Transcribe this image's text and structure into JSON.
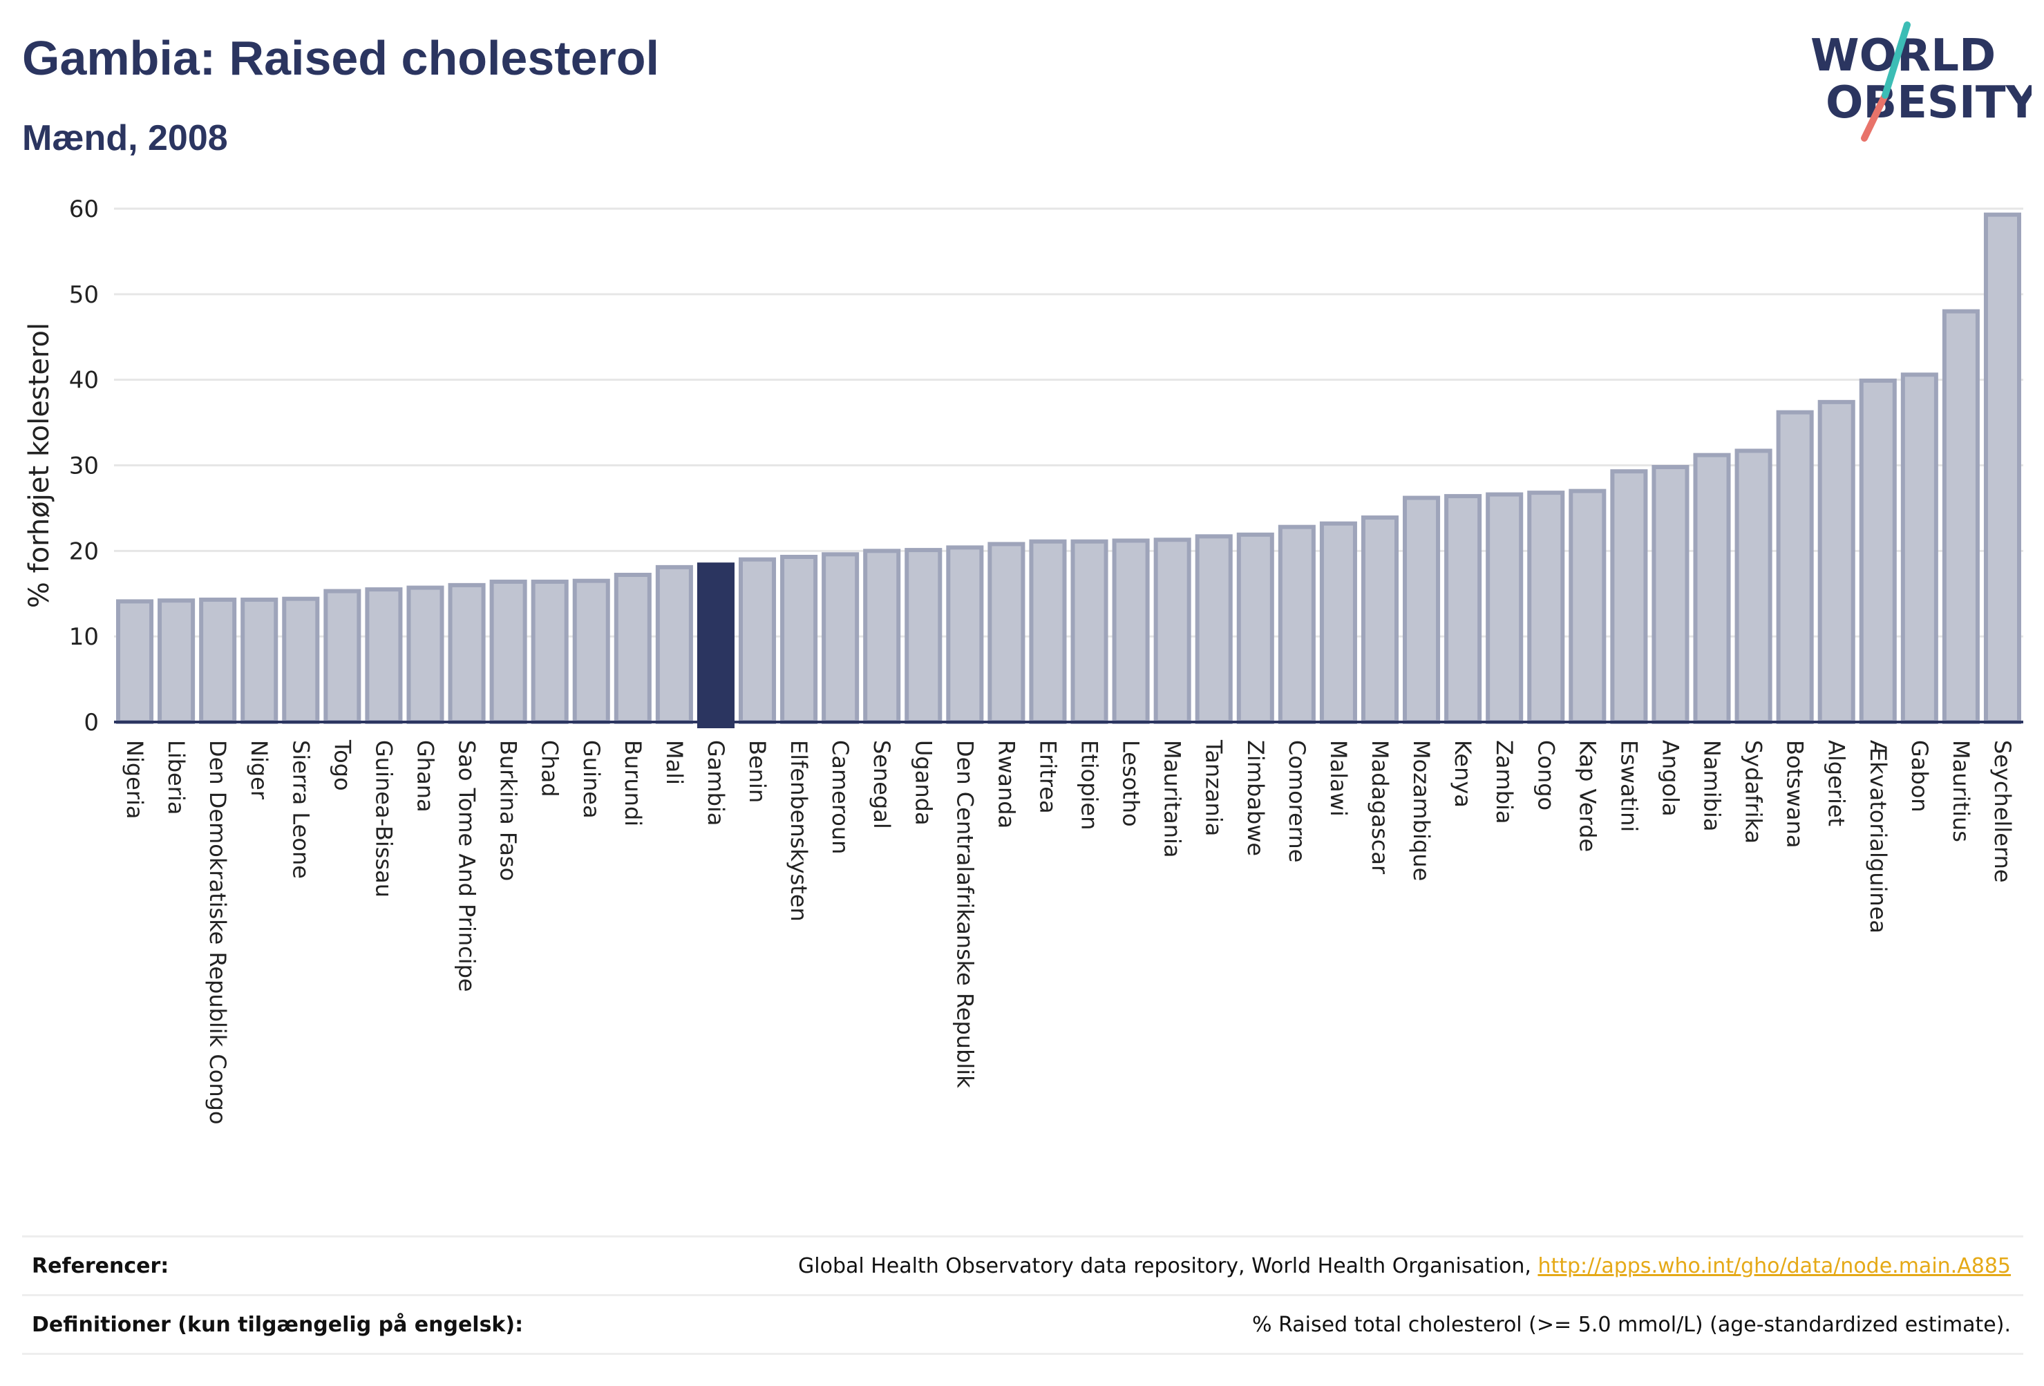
{
  "header": {
    "title": "Gambia: Raised cholesterol",
    "subtitle": "Mænd, 2008"
  },
  "logo": {
    "line1": "WORLD",
    "line2": "OBESITY"
  },
  "chart_data": {
    "type": "bar",
    "title": "Gambia: Raised cholesterol",
    "subtitle": "Mænd, 2008",
    "ylabel": "% forhøjet kolesterol",
    "xlabel": "",
    "ylim": [
      0,
      60
    ],
    "yticks": [
      0,
      10,
      20,
      30,
      40,
      50,
      60
    ],
    "grid": true,
    "highlight": "Gambia",
    "colors": {
      "bar": "#c0c4d1",
      "bar_border": "#9ea4ba",
      "highlight": "#2b3560",
      "grid": "#e6e6e6"
    },
    "categories": [
      "Nigeria",
      "Liberia",
      "Den Demokratiske Republik Congo",
      "Niger",
      "Sierra Leone",
      "Togo",
      "Guinea-Bissau",
      "Ghana",
      "Sao Tome And Principe",
      "Burkina Faso",
      "Chad",
      "Guinea",
      "Burundi",
      "Mali",
      "Gambia",
      "Benin",
      "Elfenbenskysten",
      "Cameroun",
      "Senegal",
      "Uganda",
      "Den Centralafrikanske Republik",
      "Rwanda",
      "Eritrea",
      "Etiopien",
      "Lesotho",
      "Mauritania",
      "Tanzania",
      "Zimbabwe",
      "Comorerne",
      "Malawi",
      "Madagascar",
      "Mozambique",
      "Kenya",
      "Zambia",
      "Congo",
      "Kap Verde",
      "Eswatini",
      "Angola",
      "Namibia",
      "Sydafrika",
      "Botswana",
      "Algeriet",
      "Ækvatorialguinea",
      "Gabon",
      "Mauritius",
      "Seychellerne"
    ],
    "values": [
      14.1,
      14.2,
      14.3,
      14.3,
      14.4,
      15.3,
      15.5,
      15.7,
      16.0,
      16.4,
      16.4,
      16.5,
      17.2,
      18.1,
      18.4,
      19.0,
      19.3,
      19.6,
      20.0,
      20.1,
      20.4,
      20.8,
      21.1,
      21.1,
      21.2,
      21.3,
      21.7,
      21.9,
      22.8,
      23.2,
      23.9,
      26.2,
      26.4,
      26.6,
      26.8,
      27.0,
      29.3,
      29.8,
      31.2,
      31.7,
      36.2,
      37.4,
      39.9,
      40.6,
      48.0,
      59.3
    ]
  },
  "references": {
    "label": "Referencer:",
    "text": "Global Health Observatory data repository, World Health Organisation, ",
    "link": "http://apps.who.int/gho/data/node.main.A885"
  },
  "definitions": {
    "label": "Definitioner (kun tilgængelig på engelsk):",
    "text": "% Raised total cholesterol (>= 5.0 mmol/L) (age-standardized estimate)."
  }
}
